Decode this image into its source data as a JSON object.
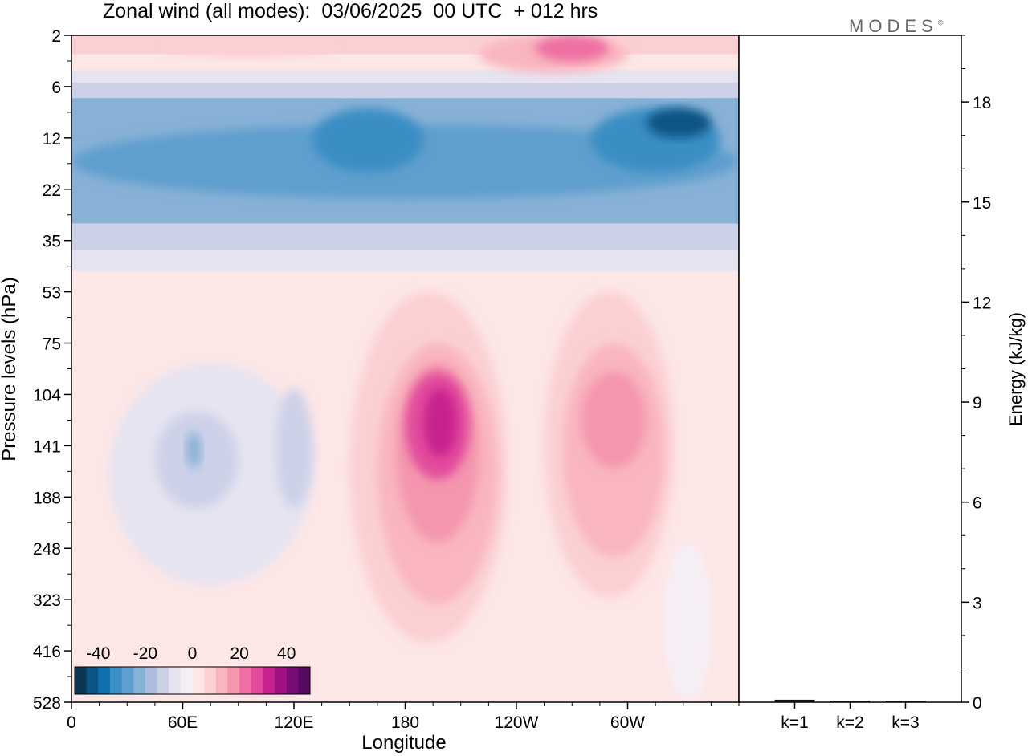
{
  "title": "Zonal wind (all modes):  03/06/2025  00 UTC  + 012 hrs",
  "brand": {
    "text": "MODES",
    "mark": "©"
  },
  "chart_data": [
    {
      "type": "heatmap",
      "title": "Zonal wind (all modes):  03/06/2025  00 UTC  + 012 hrs",
      "xlabel": "Longitude",
      "ylabel": "Pressure levels (hPa)",
      "x_ticks": [
        "0",
        "60E",
        "120E",
        "180",
        "120W",
        "60W"
      ],
      "x_tick_values": [
        0,
        60,
        120,
        180,
        240,
        300
      ],
      "xlim": [
        0,
        360
      ],
      "y_ticks": [
        "2",
        "6",
        "12",
        "22",
        "35",
        "53",
        "75",
        "104",
        "141",
        "188",
        "248",
        "323",
        "416",
        "528"
      ],
      "y_scale": "log",
      "colorbar": {
        "ticks": [
          "-40",
          "-20",
          "0",
          "20",
          "40"
        ],
        "tick_values": [
          -40,
          -20,
          0,
          20,
          40
        ],
        "colors": [
          "#0b3555",
          "#0d5485",
          "#1171ad",
          "#3a8ec4",
          "#5f9fce",
          "#88b1d6",
          "#aebdde",
          "#cdd1e8",
          "#e6e4f1",
          "#f6f0f6",
          "#fde6e6",
          "#fbd0d3",
          "#f9b6bf",
          "#f496ae",
          "#ee6fa3",
          "#e24b9c",
          "#c8228f",
          "#a01283",
          "#7a0a75",
          "#550961"
        ]
      },
      "regions": [
        {
          "name": "upper-stratosphere-easterly-band",
          "lon": [
            0,
            360
          ],
          "p": [
            6,
            35
          ],
          "u": -25
        },
        {
          "name": "upper-westerly-band-east",
          "lon": [
            230,
            310
          ],
          "p": [
            2,
            5
          ],
          "u": 20
        },
        {
          "name": "jet-core-180",
          "lon": [
            180,
            215
          ],
          "p": [
            90,
            170
          ],
          "u": 25
        },
        {
          "name": "jet-core-70W",
          "lon": [
            275,
            310
          ],
          "p": [
            90,
            160
          ],
          "u": 18
        },
        {
          "name": "easterly-core-60E",
          "lon": [
            45,
            90
          ],
          "p": [
            115,
            200
          ],
          "u": -15
        },
        {
          "name": "easterly-core-120E",
          "lon": [
            110,
            130
          ],
          "p": [
            100,
            200
          ],
          "u": -12
        }
      ]
    },
    {
      "type": "bar",
      "categories": [
        "k=1",
        "k=2",
        "k=3"
      ],
      "values": [
        0.05,
        0.02,
        0.02
      ],
      "ylabel": "Energy (kJ/kg)",
      "ylim": [
        0,
        20
      ],
      "y_ticks": [
        "0",
        "3",
        "6",
        "9",
        "12",
        "15",
        "18"
      ],
      "y_tick_values": [
        0,
        3,
        6,
        9,
        12,
        15,
        18
      ]
    }
  ]
}
